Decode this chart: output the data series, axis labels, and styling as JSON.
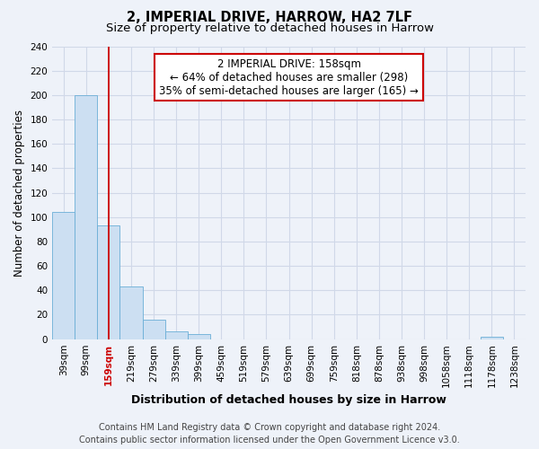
{
  "title": "2, IMPERIAL DRIVE, HARROW, HA2 7LF",
  "subtitle": "Size of property relative to detached houses in Harrow",
  "xlabel": "Distribution of detached houses by size in Harrow",
  "ylabel": "Number of detached properties",
  "bar_labels": [
    "39sqm",
    "99sqm",
    "159sqm",
    "219sqm",
    "279sqm",
    "339sqm",
    "399sqm",
    "459sqm",
    "519sqm",
    "579sqm",
    "639sqm",
    "699sqm",
    "759sqm",
    "818sqm",
    "878sqm",
    "938sqm",
    "998sqm",
    "1058sqm",
    "1118sqm",
    "1178sqm",
    "1238sqm"
  ],
  "bar_values": [
    104,
    200,
    93,
    43,
    16,
    6,
    4,
    0,
    0,
    0,
    0,
    0,
    0,
    0,
    0,
    0,
    0,
    0,
    0,
    2,
    0
  ],
  "bar_color": "#ccdff2",
  "bar_edge_color": "#6aaed6",
  "vline_x_index": 2,
  "vline_color": "#cc0000",
  "ylim": [
    0,
    240
  ],
  "yticks": [
    0,
    20,
    40,
    60,
    80,
    100,
    120,
    140,
    160,
    180,
    200,
    220,
    240
  ],
  "annotation_title": "2 IMPERIAL DRIVE: 158sqm",
  "annotation_line1": "← 64% of detached houses are smaller (298)",
  "annotation_line2": "35% of semi-detached houses are larger (165) →",
  "annotation_box_color": "#ffffff",
  "annotation_box_edge": "#cc0000",
  "footer_line1": "Contains HM Land Registry data © Crown copyright and database right 2024.",
  "footer_line2": "Contains public sector information licensed under the Open Government Licence v3.0.",
  "bg_color": "#eef2f9",
  "plot_bg_color": "#eef2f9",
  "grid_color": "#d0d8e8",
  "title_fontsize": 10.5,
  "subtitle_fontsize": 9.5,
  "xlabel_fontsize": 9,
  "ylabel_fontsize": 8.5,
  "tick_fontsize": 7.5,
  "annotation_fontsize": 8.5,
  "footer_fontsize": 7
}
